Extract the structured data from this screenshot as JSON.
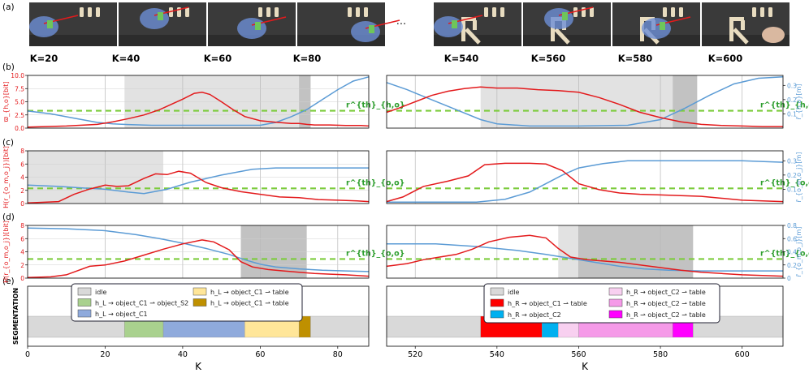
{
  "panel_labels": [
    "(a)",
    "(b)",
    "(c)",
    "(d)",
    "(e)"
  ],
  "frame_labels": {
    "left": [
      "K=20",
      "K=40",
      "K=60",
      "K=80"
    ],
    "right": [
      "K=540",
      "K=560",
      "K=580",
      "K=600"
    ]
  },
  "ellipsis": "···",
  "xlabel": "K",
  "left_xticks": [
    0,
    20,
    40,
    60,
    80
  ],
  "right_xticks": [
    520,
    540,
    560,
    580,
    600
  ],
  "seg_ylabel": "SEGMENTATION",
  "colors": {
    "red": "#e31a1c",
    "blue": "#5b9bd5",
    "green_dash": "#7ccc3c",
    "gray_light": "#e2e2e2",
    "gray_dark": "#c2c2c2"
  },
  "chart_data": [
    {
      "type": "line",
      "panel": "b",
      "side": "left",
      "ylabel": "ϖ_{h,o}[bit]",
      "y2label": "r̄_{h,o}[m]",
      "threshold_label": "r^{th}_{h,o}",
      "xlim": [
        0,
        88
      ],
      "ylim": [
        0,
        10
      ],
      "y2lim": [
        0,
        0.37
      ],
      "yticks": [
        0,
        2.5,
        5,
        7.5,
        10
      ],
      "y2ticks": [],
      "threshold": 3.3,
      "shaded": [
        {
          "x0": 25,
          "x1": 70,
          "shade": "light"
        },
        {
          "x0": 70,
          "x1": 73,
          "shade": "dark"
        }
      ],
      "red": {
        "x": [
          0,
          10,
          18,
          22,
          26,
          30,
          34,
          37,
          40,
          43,
          45,
          47,
          50,
          53,
          56,
          60,
          64,
          68,
          70,
          72,
          74,
          78,
          82,
          86,
          88
        ],
        "y": [
          0.2,
          0.4,
          0.7,
          1.2,
          1.8,
          2.5,
          3.5,
          4.5,
          5.5,
          6.6,
          6.8,
          6.4,
          5.0,
          3.5,
          2.2,
          1.4,
          1.1,
          0.9,
          0.9,
          0.7,
          0.6,
          0.6,
          0.5,
          0.5,
          0.4
        ]
      },
      "blue": {
        "x": [
          0,
          6,
          12,
          18,
          22,
          26,
          32,
          40,
          50,
          60,
          64,
          68,
          72,
          76,
          80,
          84,
          88
        ],
        "y": [
          0.12,
          0.1,
          0.07,
          0.04,
          0.03,
          0.025,
          0.02,
          0.02,
          0.02,
          0.02,
          0.04,
          0.08,
          0.13,
          0.2,
          0.27,
          0.33,
          0.36
        ]
      }
    },
    {
      "type": "line",
      "panel": "b",
      "side": "right",
      "ylabel": "",
      "y2label": "r̄_{h,o}[m]",
      "threshold_label": "r^{th}_{h,o}",
      "xlim": [
        513,
        610
      ],
      "ylim": [
        0,
        10
      ],
      "y2lim": [
        0,
        0.37
      ],
      "yticks": [],
      "y2ticks": [
        0.1,
        0.2,
        0.3
      ],
      "threshold": 3.3,
      "shaded": [
        {
          "x0": 536,
          "x1": 583,
          "shade": "light"
        },
        {
          "x0": 583,
          "x1": 589,
          "shade": "dark"
        }
      ],
      "red": {
        "x": [
          513,
          516,
          520,
          524,
          528,
          532,
          536,
          540,
          545,
          550,
          555,
          560,
          565,
          570,
          575,
          580,
          585,
          590,
          595,
          600,
          605,
          610
        ],
        "y": [
          3.0,
          3.8,
          5.0,
          6.2,
          7.0,
          7.5,
          7.8,
          7.6,
          7.6,
          7.3,
          7.1,
          6.8,
          5.8,
          4.5,
          3.0,
          2.0,
          1.2,
          0.7,
          0.5,
          0.4,
          0.3,
          0.3
        ]
      },
      "blue": {
        "x": [
          513,
          518,
          524,
          530,
          536,
          540,
          548,
          560,
          572,
          580,
          586,
          592,
          598,
          604,
          610
        ],
        "y": [
          0.32,
          0.27,
          0.2,
          0.13,
          0.06,
          0.03,
          0.015,
          0.015,
          0.02,
          0.06,
          0.14,
          0.23,
          0.31,
          0.35,
          0.36
        ]
      }
    },
    {
      "type": "line",
      "panel": "c",
      "side": "left",
      "ylabel": "H(r_{o_m,o_j})[bit]",
      "y2label": "r̄_{o_m,o_j}[m]",
      "threshold_label": "r^{th}_{o,o}",
      "xlim": [
        0,
        88
      ],
      "ylim": [
        0,
        8
      ],
      "y2lim": [
        0,
        0.37
      ],
      "yticks": [
        0,
        2,
        4,
        6,
        8
      ],
      "y2ticks": [],
      "threshold": 2.3,
      "shaded": [
        {
          "x0": 0,
          "x1": 35,
          "shade": "light"
        }
      ],
      "red": {
        "x": [
          0,
          8,
          12,
          16,
          20,
          23,
          26,
          30,
          33,
          36,
          39,
          42,
          46,
          50,
          55,
          60,
          65,
          70,
          75,
          80,
          85,
          88
        ],
        "y": [
          0.1,
          0.3,
          1.4,
          2.2,
          2.8,
          2.6,
          2.7,
          3.8,
          4.5,
          4.4,
          4.9,
          4.6,
          3.2,
          2.4,
          1.8,
          1.4,
          1.0,
          0.9,
          0.6,
          0.5,
          0.4,
          0.3
        ]
      },
      "blue": {
        "x": [
          0,
          8,
          14,
          20,
          26,
          30,
          36,
          42,
          50,
          58,
          64,
          70,
          76,
          82,
          88
        ],
        "y": [
          0.13,
          0.12,
          0.11,
          0.1,
          0.08,
          0.07,
          0.1,
          0.15,
          0.2,
          0.24,
          0.25,
          0.25,
          0.25,
          0.25,
          0.25
        ]
      }
    },
    {
      "type": "line",
      "panel": "c",
      "side": "right",
      "ylabel": "",
      "y2label": "r̄_{o_m,o_j}[m]",
      "threshold_label": "r^{th}_{o,o}",
      "xlim": [
        513,
        610
      ],
      "ylim": [
        0,
        8
      ],
      "y2lim": [
        0,
        0.37
      ],
      "yticks": [],
      "y2ticks": [
        0.1,
        0.2,
        0.3
      ],
      "threshold": 2.3,
      "shaded": [],
      "red": {
        "x": [
          513,
          517,
          522,
          528,
          533,
          537,
          542,
          548,
          552,
          556,
          560,
          565,
          570,
          575,
          580,
          585,
          590,
          595,
          600,
          605,
          610
        ],
        "y": [
          0.3,
          1.0,
          2.6,
          3.4,
          4.2,
          5.9,
          6.1,
          6.1,
          6.0,
          5.0,
          3.0,
          2.1,
          1.6,
          1.4,
          1.3,
          1.2,
          1.1,
          0.8,
          0.5,
          0.4,
          0.3
        ]
      },
      "blue": {
        "x": [
          513,
          524,
          535,
          542,
          548,
          552,
          556,
          560,
          566,
          572,
          580,
          590,
          600,
          610
        ],
        "y": [
          0.01,
          0.01,
          0.01,
          0.03,
          0.08,
          0.14,
          0.2,
          0.25,
          0.28,
          0.3,
          0.3,
          0.3,
          0.3,
          0.29
        ]
      }
    },
    {
      "type": "line",
      "panel": "d",
      "side": "left",
      "ylabel": "H(r_{o_m,o_j})[bit]",
      "y2label": "r̄_{o_m,o_j}[m]",
      "threshold_label": "r^{th}_{o,o}",
      "xlim": [
        0,
        88
      ],
      "ylim": [
        0,
        8
      ],
      "y2lim": [
        0,
        0.8
      ],
      "yticks": [
        0,
        2,
        4,
        6,
        8
      ],
      "y2ticks": [],
      "threshold": 2.9,
      "shaded": [
        {
          "x0": 55,
          "x1": 72,
          "shade": "dark"
        }
      ],
      "red": {
        "x": [
          0,
          6,
          10,
          16,
          20,
          25,
          30,
          35,
          40,
          45,
          48,
          52,
          55,
          58,
          62,
          66,
          70,
          74,
          78,
          82,
          88
        ],
        "y": [
          0.1,
          0.2,
          0.5,
          1.8,
          2.0,
          2.6,
          3.5,
          4.4,
          5.2,
          5.8,
          5.5,
          4.3,
          2.5,
          1.7,
          1.3,
          1.1,
          0.9,
          0.7,
          0.6,
          0.5,
          0.3
        ]
      },
      "blue": {
        "x": [
          0,
          10,
          20,
          28,
          34,
          40,
          46,
          52,
          56,
          60,
          64,
          70,
          76,
          82,
          88
        ],
        "y": [
          0.76,
          0.75,
          0.72,
          0.66,
          0.6,
          0.53,
          0.45,
          0.36,
          0.28,
          0.21,
          0.17,
          0.14,
          0.12,
          0.11,
          0.1
        ]
      }
    },
    {
      "type": "line",
      "panel": "d",
      "side": "right",
      "ylabel": "",
      "y2label": "r̄_{o_m,o_j}[m]",
      "threshold_label": "r^{th}_{o,o}",
      "xlim": [
        513,
        610
      ],
      "ylim": [
        0,
        8
      ],
      "y2lim": [
        0,
        0.8
      ],
      "yticks": [],
      "y2ticks": [
        0,
        0.2,
        0.4,
        0.6,
        0.8
      ],
      "threshold": 2.9,
      "shaded": [
        {
          "x0": 555,
          "x1": 560,
          "shade": "light"
        },
        {
          "x0": 560,
          "x1": 588,
          "shade": "dark"
        }
      ],
      "red": {
        "x": [
          513,
          518,
          522,
          526,
          530,
          534,
          538,
          543,
          548,
          552,
          555,
          558,
          562,
          566,
          570,
          575,
          580,
          585,
          590,
          595,
          600,
          605,
          610
        ],
        "y": [
          1.8,
          2.2,
          2.8,
          3.2,
          3.6,
          4.4,
          5.5,
          6.2,
          6.5,
          6.1,
          4.5,
          3.2,
          2.8,
          2.6,
          2.4,
          2.0,
          1.6,
          1.2,
          0.9,
          0.7,
          0.5,
          0.4,
          0.3
        ]
      },
      "blue": {
        "x": [
          513,
          525,
          535,
          545,
          552,
          558,
          564,
          570,
          576,
          582,
          590,
          600,
          610
        ],
        "y": [
          0.52,
          0.52,
          0.48,
          0.42,
          0.36,
          0.3,
          0.24,
          0.18,
          0.14,
          0.12,
          0.11,
          0.11,
          0.11
        ]
      }
    }
  ],
  "segmentation": {
    "left": [
      {
        "x0": 0,
        "x1": 25,
        "color": "#d9d9d9"
      },
      {
        "x0": 25,
        "x1": 35,
        "color": "#a9d18e"
      },
      {
        "x0": 35,
        "x1": 56,
        "color": "#8faadc"
      },
      {
        "x0": 56,
        "x1": 70,
        "color": "#ffe699"
      },
      {
        "x0": 70,
        "x1": 73,
        "color": "#bf9000"
      },
      {
        "x0": 73,
        "x1": 88,
        "color": "#d9d9d9"
      }
    ],
    "right": [
      {
        "x0": 513,
        "x1": 536,
        "color": "#d9d9d9"
      },
      {
        "x0": 536,
        "x1": 551,
        "color": "#ff0000"
      },
      {
        "x0": 551,
        "x1": 555,
        "color": "#00b0f0"
      },
      {
        "x0": 555,
        "x1": 560,
        "color": "#f8d0f0"
      },
      {
        "x0": 560,
        "x1": 583,
        "color": "#f59ae8"
      },
      {
        "x0": 583,
        "x1": 588,
        "color": "#ff00ff"
      },
      {
        "x0": 588,
        "x1": 610,
        "color": "#d9d9d9"
      }
    ]
  },
  "legend_left": [
    {
      "color": "#d9d9d9",
      "label": "idle"
    },
    {
      "color": "#ffe699",
      "label": "h_L → object_C1 ⇀ table"
    },
    {
      "color": "#a9d18e",
      "label": "h_L → object_C1 ⇀ object_S2"
    },
    {
      "color": "#bf9000",
      "label": "h_L → object_C1 ⇀ table"
    },
    {
      "color": "#8faadc",
      "label": "h_L → object_C1"
    }
  ],
  "legend_right": [
    {
      "color": "#d9d9d9",
      "label": "idle"
    },
    {
      "color": "#f8d0f0",
      "label": "h_R → object_C2 ⇀ table"
    },
    {
      "color": "#ff0000",
      "label": "h_R → object_C1 ⇀ table"
    },
    {
      "color": "#f59ae8",
      "label": "h_R → object_C2 ⇀ table"
    },
    {
      "color": "#00b0f0",
      "label": "h_R → object_C2"
    },
    {
      "color": "#ff00ff",
      "label": "h_R ⇀ object_C2 ⇀ table"
    }
  ]
}
